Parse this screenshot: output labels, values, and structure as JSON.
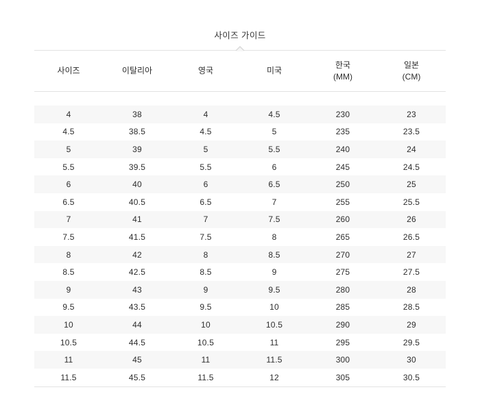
{
  "title": "사이즈 가이드",
  "table": {
    "headers": [
      {
        "label": "사이즈",
        "sub": ""
      },
      {
        "label": "이탈리아",
        "sub": ""
      },
      {
        "label": "영국",
        "sub": ""
      },
      {
        "label": "미국",
        "sub": ""
      },
      {
        "label": "한국",
        "sub": "(MM)"
      },
      {
        "label": "일본",
        "sub": "(CM)"
      }
    ],
    "rows": [
      [
        "4",
        "38",
        "4",
        "4.5",
        "230",
        "23"
      ],
      [
        "4.5",
        "38.5",
        "4.5",
        "5",
        "235",
        "23.5"
      ],
      [
        "5",
        "39",
        "5",
        "5.5",
        "240",
        "24"
      ],
      [
        "5.5",
        "39.5",
        "5.5",
        "6",
        "245",
        "24.5"
      ],
      [
        "6",
        "40",
        "6",
        "6.5",
        "250",
        "25"
      ],
      [
        "6.5",
        "40.5",
        "6.5",
        "7",
        "255",
        "25.5"
      ],
      [
        "7",
        "41",
        "7",
        "7.5",
        "260",
        "26"
      ],
      [
        "7.5",
        "41.5",
        "7.5",
        "8",
        "265",
        "26.5"
      ],
      [
        "8",
        "42",
        "8",
        "8.5",
        "270",
        "27"
      ],
      [
        "8.5",
        "42.5",
        "8.5",
        "9",
        "275",
        "27.5"
      ],
      [
        "9",
        "43",
        "9",
        "9.5",
        "280",
        "28"
      ],
      [
        "9.5",
        "43.5",
        "9.5",
        "10",
        "285",
        "28.5"
      ],
      [
        "10",
        "44",
        "10",
        "10.5",
        "290",
        "29"
      ],
      [
        "10.5",
        "44.5",
        "10.5",
        "11",
        "295",
        "29.5"
      ],
      [
        "11",
        "45",
        "11",
        "11.5",
        "300",
        "30"
      ],
      [
        "11.5",
        "45.5",
        "11.5",
        "12",
        "305",
        "30.5"
      ]
    ]
  },
  "colors": {
    "stripe": "#f7f7f7",
    "divider": "#e2e2e2",
    "text": "#2d2d2d",
    "background": "#ffffff"
  }
}
